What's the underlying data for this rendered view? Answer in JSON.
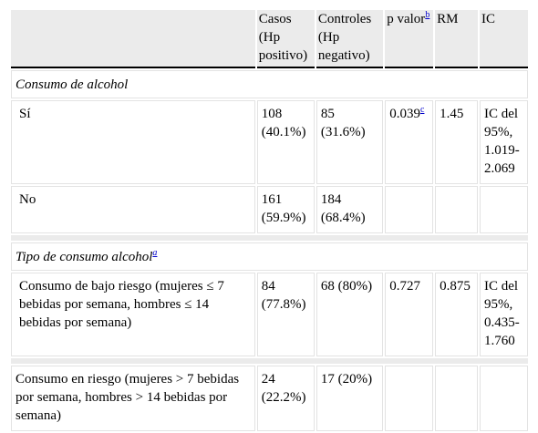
{
  "columns": [
    {
      "label": "Casos (Hp positivo)"
    },
    {
      "label": "Controles (Hp negativo)"
    },
    {
      "label": "p valor",
      "note": "b"
    },
    {
      "label": "RM"
    },
    {
      "label": "IC"
    }
  ],
  "sections": [
    {
      "title": "Consumo de alcohol",
      "rows": [
        {
          "label": "Sí",
          "cells": [
            "108 (40.1%)",
            "85 (31.6%)",
            "0.039",
            "1.45",
            "IC del 95%, 1.019-2.069"
          ],
          "p_note": "c"
        },
        {
          "label": "No",
          "cells": [
            "161 (59.9%)",
            "184 (68.4%)"
          ]
        }
      ]
    },
    {
      "title": "Tipo de consumo alcohol",
      "note": "a",
      "rows": [
        {
          "label": "Consumo de bajo riesgo (mujeres ≤ 7 bebidas por semana, hombres ≤ 14 bebidas por semana)",
          "cells": [
            "84 (77.8%)",
            "68 (80%)",
            "0.727",
            "0.875",
            "IC del 95%, 0.435-1.760"
          ]
        }
      ]
    },
    {
      "rows": [
        {
          "label": "Consumo en riesgo (mujeres > 7 bebidas por semana, hombres > 14 bebidas por semana)",
          "cells": [
            "24 (22.2%)",
            "17 (20%)"
          ]
        }
      ]
    }
  ]
}
